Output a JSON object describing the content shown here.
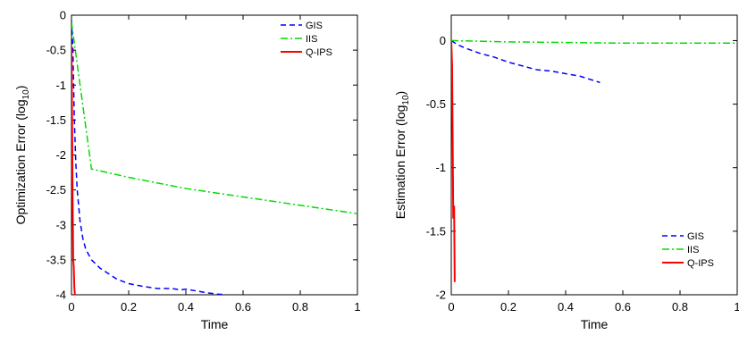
{
  "chart_data": [
    {
      "type": "line",
      "xlabel": "Time",
      "ylabel_main": "Optimization Error (log",
      "ylabel_sub": "10",
      "ylabel_end": ")",
      "xlim": [
        0,
        1
      ],
      "ylim": [
        -4,
        0
      ],
      "xticks": [
        0,
        0.2,
        0.4,
        0.6,
        0.8,
        1
      ],
      "xtick_labels": [
        "0",
        "0.2",
        "0.4",
        "0.6",
        "0.8",
        "1"
      ],
      "yticks": [
        0,
        -0.5,
        -1,
        -1.5,
        -2,
        -2.5,
        -3,
        -3.5,
        -4
      ],
      "ytick_labels": [
        "0",
        "-0.5",
        "-1",
        "-1.5",
        "-2",
        "-2.5",
        "-3",
        "-3.5",
        "-4"
      ],
      "grid": false,
      "legend_position": "top-right",
      "series": [
        {
          "name": "GIS",
          "color": "#0000ff",
          "dash": "dashed",
          "x": [
            0,
            0.005,
            0.01,
            0.015,
            0.02,
            0.03,
            0.04,
            0.05,
            0.07,
            0.1,
            0.13,
            0.16,
            0.2,
            0.25,
            0.3,
            0.35,
            0.38,
            0.4,
            0.43,
            0.47,
            0.51,
            0.54
          ],
          "y": [
            -0.08,
            -0.5,
            -1.5,
            -2.1,
            -2.5,
            -2.95,
            -3.2,
            -3.35,
            -3.5,
            -3.62,
            -3.7,
            -3.78,
            -3.84,
            -3.88,
            -3.91,
            -3.91,
            -3.93,
            -3.92,
            -3.94,
            -3.97,
            -3.99,
            -4.0
          ]
        },
        {
          "name": "IIS",
          "color": "#00dd00",
          "dash": "dashdot",
          "x": [
            0,
            0.07,
            0.2,
            0.4,
            0.6,
            0.8,
            1.0
          ],
          "y": [
            -0.1,
            -2.2,
            -2.32,
            -2.48,
            -2.6,
            -2.72,
            -2.84
          ]
        },
        {
          "name": "Q-IPS",
          "color": "#ff0000",
          "dash": "solid",
          "x": [
            0,
            0.002,
            0.004,
            0.006,
            0.008,
            0.01,
            0.012
          ],
          "y": [
            -0.45,
            -1.4,
            -2.6,
            -3.5,
            -3.6,
            -3.9,
            -4.0
          ]
        }
      ]
    },
    {
      "type": "line",
      "xlabel": "Time",
      "ylabel_main": "Estimation Error (log",
      "ylabel_sub": "10",
      "ylabel_end": ")",
      "xlim": [
        0,
        1
      ],
      "ylim": [
        -2,
        0.2
      ],
      "xticks": [
        0,
        0.2,
        0.4,
        0.6,
        0.8,
        1
      ],
      "xtick_labels": [
        "0",
        "0.2",
        "0.4",
        "0.6",
        "0.8",
        "1"
      ],
      "yticks": [
        0,
        -0.5,
        -1,
        -1.5,
        -2
      ],
      "ytick_labels": [
        "0",
        "-0.5",
        "-1",
        "-1.5",
        "-2"
      ],
      "grid": false,
      "legend_position": "bottom-right",
      "series": [
        {
          "name": "GIS",
          "color": "#0000ff",
          "dash": "dashed",
          "x": [
            0,
            0.02,
            0.05,
            0.1,
            0.15,
            0.2,
            0.25,
            0.3,
            0.35,
            0.4,
            0.45,
            0.52
          ],
          "y": [
            0,
            -0.03,
            -0.06,
            -0.1,
            -0.13,
            -0.17,
            -0.2,
            -0.23,
            -0.24,
            -0.26,
            -0.28,
            -0.33
          ]
        },
        {
          "name": "IIS",
          "color": "#00dd00",
          "dash": "dashdot",
          "x": [
            0,
            0.2,
            0.4,
            0.6,
            0.8,
            1.0
          ],
          "y": [
            0,
            -0.01,
            -0.015,
            -0.02,
            -0.02,
            -0.02
          ]
        },
        {
          "name": "Q-IPS",
          "color": "#ff0000",
          "dash": "solid",
          "x": [
            0,
            0.003,
            0.005,
            0.007,
            0.008,
            0.01,
            0.011,
            0.012
          ],
          "y": [
            0,
            -0.2,
            -0.8,
            -1.4,
            -1.35,
            -1.3,
            -1.6,
            -1.9
          ]
        }
      ]
    }
  ]
}
